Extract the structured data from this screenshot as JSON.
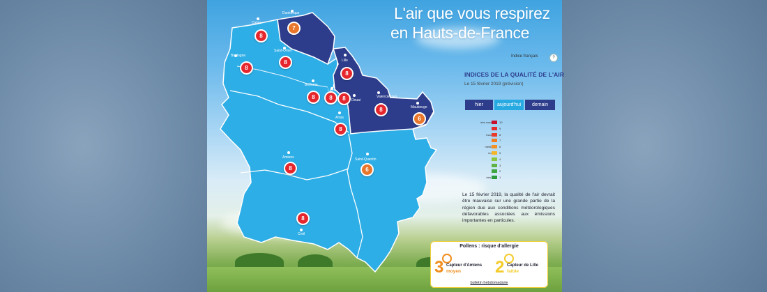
{
  "header": {
    "title_line1": "L'air que vous respirez",
    "title_line2": "en Hauts-de-France",
    "index_label": "Indice français",
    "help_label": "?"
  },
  "indices": {
    "title": "INDICES DE LA QUALITÉ DE L'AIR",
    "date": "Le 15 février 2019 (prévision)"
  },
  "day_tabs": [
    {
      "label": "hier",
      "active": false
    },
    {
      "label": "aujourd'hui",
      "active": true
    },
    {
      "label": "demain",
      "active": false
    }
  ],
  "scale": [
    {
      "label": "très mauvais",
      "value": "10",
      "color": "#c8102e"
    },
    {
      "label": "",
      "value": "9",
      "color": "#e52d2d"
    },
    {
      "label": "mauvais",
      "value": "8",
      "color": "#ea3a2a"
    },
    {
      "label": "",
      "value": "7",
      "color": "#f07d1f"
    },
    {
      "label": "médiocre",
      "value": "6",
      "color": "#f39222"
    },
    {
      "label": "moyen",
      "value": "5",
      "color": "#f5b52b"
    },
    {
      "label": "",
      "value": "4",
      "color": "#8cc63e"
    },
    {
      "label": "bon",
      "value": "3",
      "color": "#5fb345"
    },
    {
      "label": "",
      "value": "2",
      "color": "#3ea640"
    },
    {
      "label": "très bon",
      "value": "1",
      "color": "#2c9a3a"
    }
  ],
  "forecast_text": "Le 15 février 2019, la qualité de l'air devrait être mauvaise sur une grande partie de la région due aux conditions météorologiques défavorables associées aux émissions importantes en particules.",
  "pollens": {
    "title": "Pollens : risque d'allergie",
    "left": {
      "value": "3",
      "label": "Capteur d'Amiens",
      "level": "moyen"
    },
    "right": {
      "value": "2",
      "label": "Capteur de Lille",
      "level": "faible"
    },
    "bulletin": "bulletin hebdomadaire"
  },
  "map": {
    "markers": [
      {
        "city": "Calais",
        "value": "8",
        "level": "red"
      },
      {
        "city": "Dunkerque",
        "value": "7",
        "level": "orange"
      },
      {
        "city": "Boulogne",
        "value": "8",
        "level": "red"
      },
      {
        "city": "Saint-Omer",
        "value": "8",
        "level": "red"
      },
      {
        "city": "Lille",
        "value": "8",
        "level": "red"
      },
      {
        "city": "Béthune",
        "value": "8",
        "level": "red"
      },
      {
        "city": "Lens",
        "value": "8",
        "level": "red"
      },
      {
        "city": "Douai",
        "value": "8",
        "level": "red"
      },
      {
        "city": "Valenciennes",
        "value": "8",
        "level": "red"
      },
      {
        "city": "Maubeuge",
        "value": "6",
        "level": "orange"
      },
      {
        "city": "Arras",
        "value": "8",
        "level": "red"
      },
      {
        "city": "Amiens",
        "value": "8",
        "level": "red"
      },
      {
        "city": "Saint-Quentin",
        "value": "6",
        "level": "orange"
      },
      {
        "city": "Creil",
        "value": "8",
        "level": "red"
      }
    ]
  },
  "colors": {
    "navy": "#2d3d8c",
    "light_blue": "#27a9e1",
    "red": "#e6262d",
    "orange": "#e8772b"
  }
}
